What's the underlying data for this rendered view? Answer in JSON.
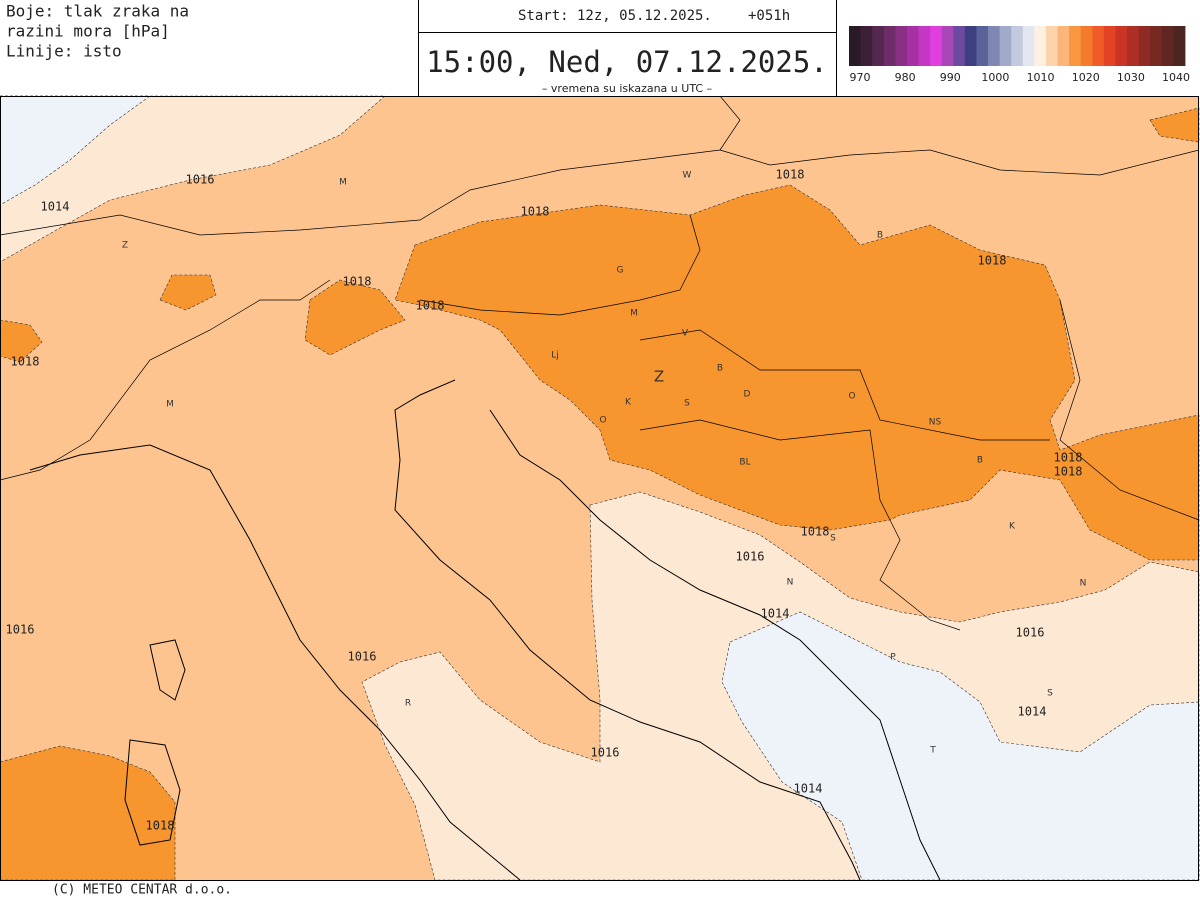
{
  "header": {
    "legend_text": [
      "Boje: tlak zraka na",
      "razini mora [hPa]",
      "Linije: isto"
    ],
    "start": "Start: 12z, 05.12.2025.",
    "lead": "+051h",
    "valid_time": "15:00, Ned, 07.12.2025.",
    "note": "– vremena su iskazana u UTC –"
  },
  "colorbar": {
    "colors": [
      "#2a1a28",
      "#3d2038",
      "#55284f",
      "#6e2d69",
      "#8a2f86",
      "#a730a5",
      "#c437c4",
      "#e03fe0",
      "#a848b8",
      "#6c4aa0",
      "#3c3f80",
      "#59639a",
      "#7e88b3",
      "#a2aacb",
      "#c3c9df",
      "#e2e6f1",
      "#fdf0e3",
      "#fcd3ab",
      "#fbb57a",
      "#f8973f",
      "#f57b2c",
      "#f05c28",
      "#e24226",
      "#c93424",
      "#ad2e24",
      "#902a24",
      "#762823",
      "#5f2622",
      "#4c2420"
    ],
    "labels": [
      970,
      980,
      990,
      1000,
      1010,
      1020,
      1030,
      1040
    ]
  },
  "isobar_labels": [
    1016,
    1014,
    1018,
    1018,
    1018,
    1018,
    1018,
    1018,
    1018,
    1018,
    1018,
    1016,
    1014,
    1016,
    1016,
    1016,
    1014,
    1016,
    1014,
    1018
  ],
  "place_labels": [
    "M",
    "W",
    "Z",
    "G",
    "B",
    "M",
    "V",
    "Lj",
    "Z",
    "B",
    "D",
    "K",
    "S",
    "O",
    "O",
    "NS",
    "M",
    "BL",
    "B",
    "K",
    "S",
    "N",
    "N",
    "P",
    "S",
    "R",
    "T"
  ],
  "footer": "(C) METEO CENTAR d.o.o."
}
